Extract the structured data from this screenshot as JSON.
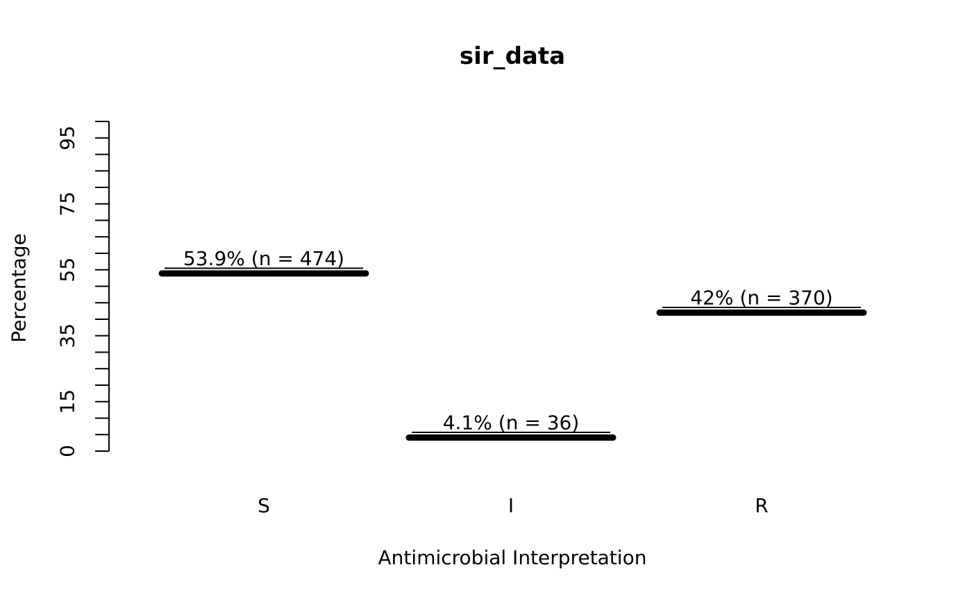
{
  "chart_data": {
    "type": "bar",
    "variant": "R-base-plot horizontal value markers (no full bars, no box, no grid)",
    "title": "sir_data",
    "xlabel": "Antimicrobial Interpretation",
    "ylabel": "Percentage",
    "categories": [
      "S",
      "I",
      "R"
    ],
    "values": [
      53.9,
      4.1,
      42
    ],
    "counts": [
      474,
      36,
      370
    ],
    "point_labels": [
      "53.9% (n = 474)",
      "4.1% (n = 36)",
      "42% (n = 370)"
    ],
    "ylim": [
      0,
      100
    ],
    "y_tick_step": 5,
    "y_labeled_ticks": [
      "0",
      "15",
      "35",
      "55",
      "75",
      "95"
    ],
    "grid": false,
    "legend": null,
    "colors": {
      "foreground": "#000000",
      "background": "#ffffff"
    }
  }
}
